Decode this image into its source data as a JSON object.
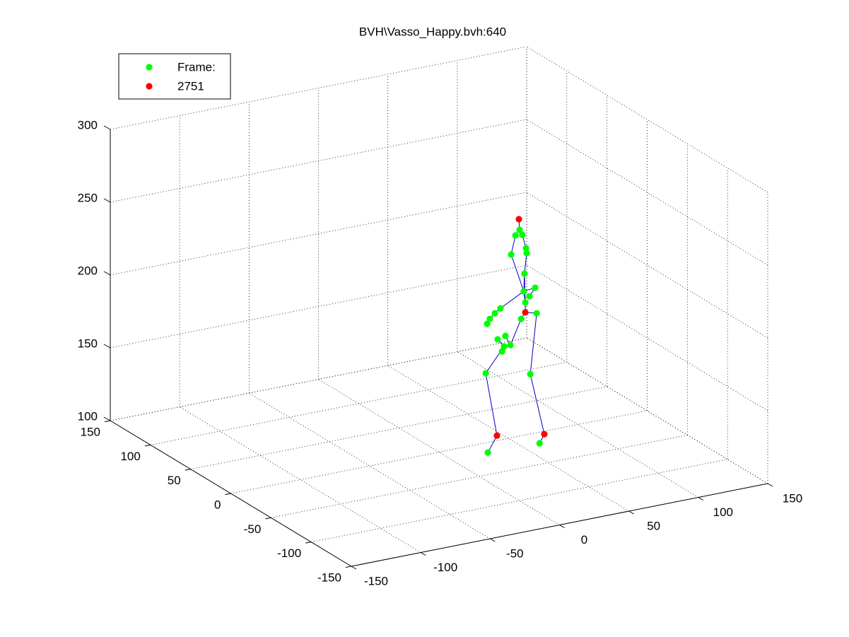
{
  "chart_data": {
    "type": "scatter3d",
    "title": "BVH\\Vasso_Happy.bvh:640",
    "xlim": [
      -150,
      150
    ],
    "ylim": [
      -150,
      150
    ],
    "zlim": [
      100,
      300
    ],
    "xticks": [
      -150,
      -100,
      -50,
      0,
      50,
      100,
      150
    ],
    "yticks": [
      -150,
      -100,
      -50,
      0,
      50,
      100,
      150
    ],
    "zticks": [
      100,
      150,
      200,
      250,
      300
    ],
    "grid": true,
    "legend": "upper left",
    "line_color": "#0000c8",
    "series": [
      {
        "name": "Frame:",
        "color": "#00ff00",
        "x": [
          46.5,
          43.5,
          48.5,
          51.1,
          51.6,
          40.4,
          50,
          49.5,
          53.6,
          57.7,
          50.6,
          47.6,
          58.8,
          32.7,
          28.7,
          25.1,
          23.1,
          36.3,
          30.7,
          35.3,
          39.9,
          33.8,
          22.1,
          54.2,
          23.6,
          60.9
        ],
        "y": [
          -20,
          -20,
          -20,
          -20,
          -20,
          -20,
          -20,
          -20,
          -20,
          -20,
          -20,
          -20,
          -20,
          -20,
          -20,
          -20,
          -20,
          -20,
          -20,
          -20,
          -20,
          -20,
          -20,
          -20,
          -20,
          -20
        ],
        "z": [
          250.5,
          247.2,
          246.7,
          237.0,
          233.5,
          234.7,
          219.8,
          207.7,
          203.5,
          208.6,
          199.8,
          189.1,
          190.9,
          199.2,
          196.6,
          193.4,
          190.4,
          179.6,
          178.3,
          172.5,
          172.6,
          169.4,
          156.6,
          150.0,
          101.9,
          101.2
        ]
      },
      {
        "name": "2751",
        "color": "#ff0000",
        "x": [
          46,
          50.6,
          30.2,
          64.3
        ],
        "y": [
          -20,
          -20,
          -20,
          -20
        ],
        "z": [
          257.9,
          193.0,
          112.3,
          106.8
        ]
      }
    ]
  }
}
